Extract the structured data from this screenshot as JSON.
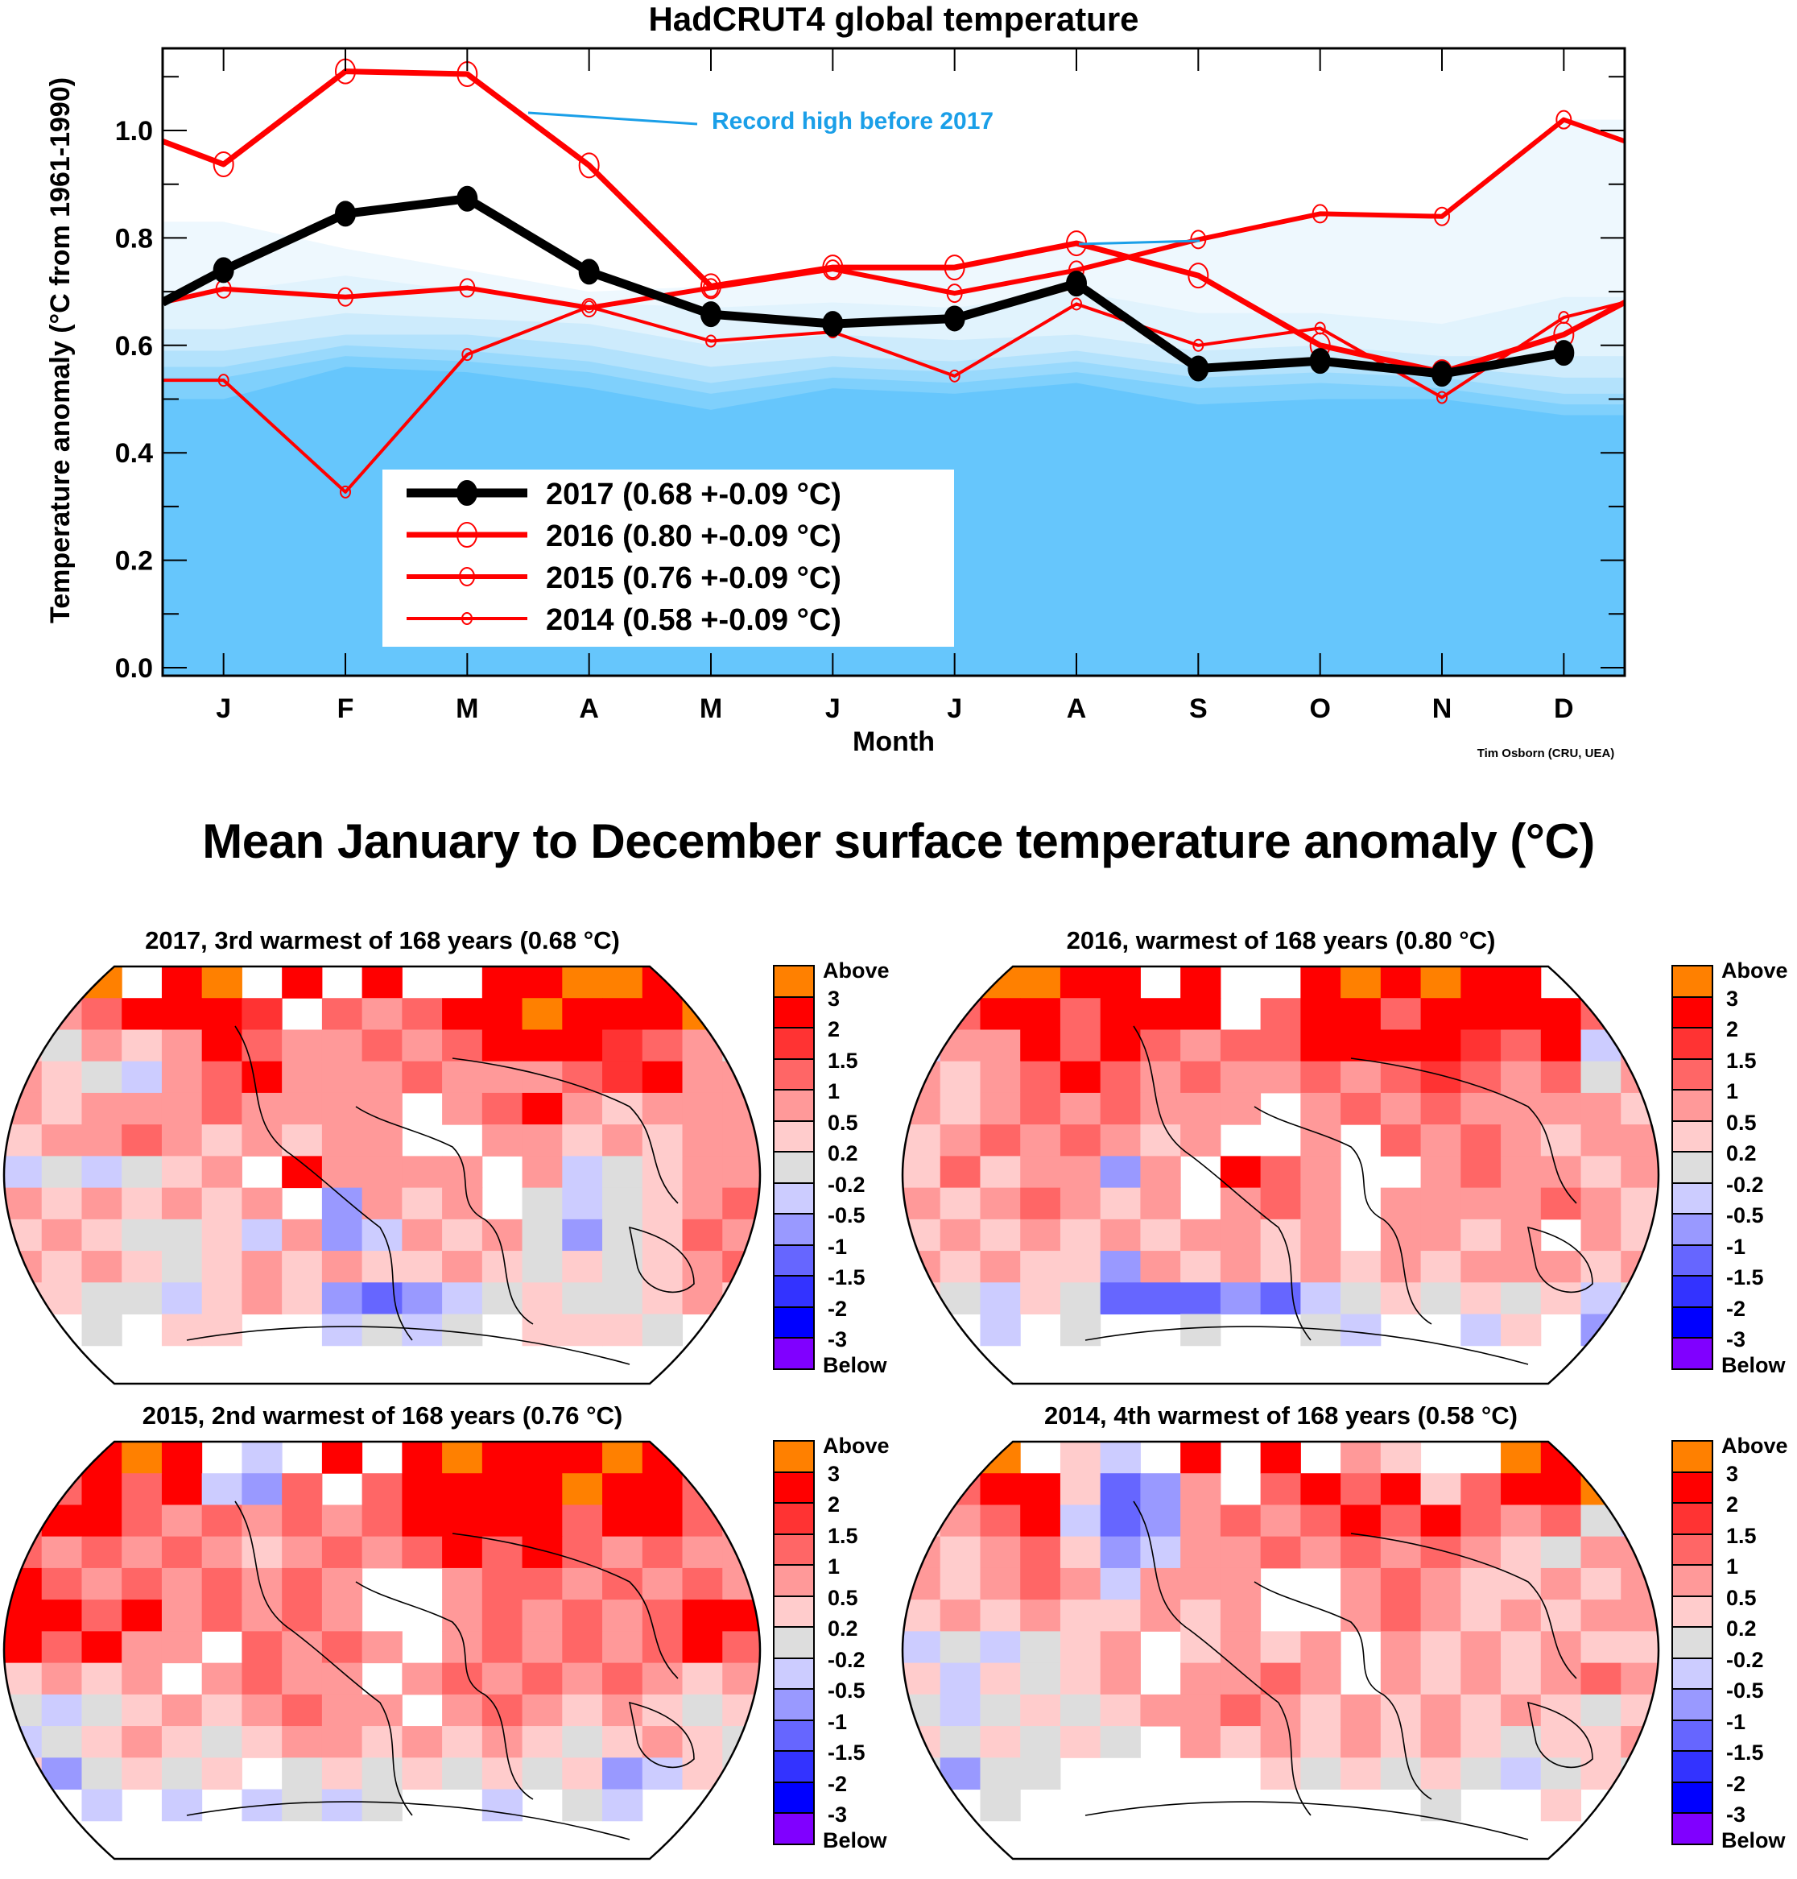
{
  "chart_data": [
    {
      "type": "line",
      "title": "HadCRUT4 global temperature",
      "xlabel": "Month",
      "ylabel": "Temperature anomaly (°C from 1961-1990)",
      "categories": [
        "J",
        "F",
        "M",
        "A",
        "M",
        "J",
        "J",
        "A",
        "S",
        "O",
        "N",
        "D"
      ],
      "ylim": [
        0.0,
        1.15
      ],
      "yticks": [
        "0.0",
        "0.2",
        "0.4",
        "0.6",
        "0.8",
        "1.0"
      ],
      "grid": false,
      "legend_position": "bottom-center",
      "annotation": {
        "text": "Record high before 2017",
        "color": "#1a9fe8"
      },
      "credit": "Tim Osborn (CRU, UEA)",
      "series": [
        {
          "name": "2017",
          "legend": "2017 (0.68 +-0.09 °C)",
          "color": "#000000",
          "marker": "filled-circle",
          "values": [
            0.74,
            0.845,
            0.873,
            0.737,
            0.658,
            0.64,
            0.65,
            0.715,
            0.557,
            0.571,
            0.547,
            0.586
          ],
          "edge_left": 0.68,
          "edge_right": null
        },
        {
          "name": "2016",
          "legend": "2016 (0.80 +-0.09 °C)",
          "color": "#ff0000",
          "marker": "open-circle-large",
          "values": [
            0.937,
            1.11,
            1.105,
            0.935,
            0.71,
            0.745,
            0.745,
            0.79,
            0.73,
            0.6,
            0.55,
            0.62
          ],
          "edge_left": 0.98,
          "edge_right": 0.68
        },
        {
          "name": "2015",
          "legend": "2015 (0.76 +-0.09 °C)",
          "color": "#ff0000",
          "marker": "open-circle-medium",
          "values": [
            0.705,
            0.69,
            0.707,
            0.67,
            0.707,
            0.742,
            0.697,
            0.74,
            0.797,
            0.845,
            0.84,
            1.02
          ],
          "edge_left": 0.68,
          "edge_right": 0.98
        },
        {
          "name": "2014",
          "legend": "2014 (0.58 +-0.09 °C)",
          "color": "#ff0000",
          "marker": "open-circle-small",
          "values": [
            0.535,
            0.327,
            0.583,
            0.672,
            0.608,
            0.625,
            0.543,
            0.677,
            0.6,
            0.632,
            0.503,
            0.652
          ],
          "edge_left": 0.535,
          "edge_right": 0.68
        }
      ],
      "record_high_before_2017": [
        0.937,
        1.11,
        1.105,
        0.935,
        0.71,
        0.745,
        0.745,
        0.79,
        0.797,
        0.845,
        0.84,
        1.02
      ],
      "background_bands": {
        "colors": [
          "#66c6fc",
          "#7fd0fc",
          "#99d9fc",
          "#b3e2fc",
          "#cdebfc",
          "#e1f3fd",
          "#eef8fe"
        ],
        "upper_bounds": [
          [
            0.5,
            0.56,
            0.55,
            0.52,
            0.48,
            0.52,
            0.51,
            0.53,
            0.49,
            0.5,
            0.5,
            0.47
          ],
          [
            0.54,
            0.58,
            0.57,
            0.55,
            0.51,
            0.54,
            0.53,
            0.55,
            0.52,
            0.53,
            0.52,
            0.49
          ],
          [
            0.56,
            0.6,
            0.59,
            0.57,
            0.53,
            0.56,
            0.55,
            0.57,
            0.54,
            0.55,
            0.54,
            0.51
          ],
          [
            0.59,
            0.62,
            0.62,
            0.6,
            0.56,
            0.58,
            0.57,
            0.59,
            0.56,
            0.57,
            0.56,
            0.54
          ],
          [
            0.63,
            0.66,
            0.65,
            0.64,
            0.6,
            0.62,
            0.61,
            0.62,
            0.59,
            0.6,
            0.58,
            0.58
          ],
          [
            0.7,
            0.73,
            0.7,
            0.68,
            0.67,
            0.68,
            0.67,
            0.7,
            0.66,
            0.66,
            0.64,
            0.69
          ],
          [
            0.83,
            0.78,
            0.74,
            0.7,
            0.71,
            0.75,
            0.75,
            0.79,
            0.797,
            0.845,
            0.84,
            1.02
          ]
        ]
      }
    },
    {
      "type": "heatmap",
      "title": "Mean January to December surface temperature anomaly (°C)",
      "colorbar": {
        "labels": [
          "Above",
          "3",
          "2",
          "1.5",
          "1",
          "0.5",
          "0.2",
          "-0.2",
          "-0.5",
          "-1",
          "-1.5",
          "-2",
          "-3",
          "Below"
        ],
        "colors": [
          "#ff8000",
          "#ff0000",
          "#ff3333",
          "#ff6666",
          "#ff9999",
          "#ffcccc",
          "#dddddd",
          "#ccccff",
          "#9999ff",
          "#6666ff",
          "#3333ff",
          "#0000ff",
          "#8000ff"
        ],
        "codes": [
          "A",
          "3",
          "2",
          "F",
          "1",
          "h",
          "0",
          "n",
          "m",
          "M",
          "b",
          "B",
          "V"
        ]
      },
      "legend_code_key": {
        "A": "above 3",
        "3": "2 to 3",
        "2": "1.5 to 2",
        "F": "1 to 1.5",
        "1": "0.5 to 1",
        "h": "0.2 to 0.5",
        "0": "-0.2 to 0.2",
        "n": "-0.5 to -0.2",
        "m": "-1 to -0.5",
        "M": "-1.5 to -1",
        ".": "no data"
      },
      "maps": [
        {
          "year": "2017",
          "title": "2017, 3rd warmest of 168 years (0.68 °C)",
          "grid": [
            "..A.3A.3.3..33AA3A.",
            ".1F3332.F1F33A333A.",
            "h01h13F11F1F3332F10",
            "1h0n1F3111F111F2311",
            "1h111F1111.1F31h111",
            "h11F1h1h11..11h1h11",
            "n0n0h1.31111.1n0h11",
            "1h1h1h1.m1h1.0n0h1F",
            "h1h00hn1mn1h10m0hF1",
            "1h1h0h1h1hh1h0h0h1F",
            "hh00nh1hmMmn0h00h1h",
            "..0.hh..n0n0.hhh0..",
            "..................."
          ]
        },
        {
          "year": "2016",
          "title": "2016, warmest of 168 years (0.80 °C)",
          "grid": [
            "..AA33.3..3A3A33...",
            ".F33F333.F33F3333F.",
            "n113F3F1FF33332F3n1",
            "1h1F3F1F11F1F2F1F01",
            "1h1F1F111.1F1F1111h",
            "h1F1F1h1..1.F1F1h11",
            "hFh11m1.3F1..1F11h1",
            "1h1F1h1.1F1.1111F1h",
            "h1h1h1h11h1.11h1.1h",
            "1h1hhm1h1h1h1h111h1",
            "h0nh0MMMmMn0h0h0hn0",
            "..n.0..0..0n..nh.m.",
            "..................."
          ]
        },
        {
          "year": "2015",
          "title": "2015, 2nd warmest of 168 years (0.76 °C)",
          "grid": [
            "..3A3.n.3.3A333A3..",
            ".F3F3nmF.F3333A33F.",
            "F33F1F1F1F3333F33F1",
            "F1F1F1h1F1F3F3F1F11",
            "3F1F1F1F1..1FF1F1F1",
            "33F31F1F1..1F1F1F33",
            "3F311.F1F1.1F1F1F3F",
            "h1h1.1F11.1F1F1F1h1",
            "0n0h1h1F11.1F1h1h0h",
            "n0h1h0h11h1h1h0h1h0",
            "hm0h0h.0h0h0h0hmnh0",
            "..n.n.n0n0..n.0n...",
            "..................."
          ]
        },
        {
          "year": "2014",
          "title": "2014, 4th warmest of 168 years (0.58 °C)",
          "grid": [
            "..A.hn.3.3.1h..A3..",
            ".F33hMm1.F3F3hF33A.",
            "h1F3nMm1F1F3F3F1F0n",
            "1h1Fhmn11F1F1F1h011",
            "1h1F1n111..1F1hh1h1",
            "h1h1hh1h1..1F1h1h11",
            "n0n0h1.h1h1.1h1h1hh",
            "hnh0h1.11F1.1h1h1F1",
            "0n0h0h11F1h1h1h1h0h",
            "h0h0h0.1h1h1h1h0hh1",
            "0m00.....h0h0h0n0h0",
            "..0..........0..h..",
            "..................."
          ]
        }
      ]
    }
  ]
}
